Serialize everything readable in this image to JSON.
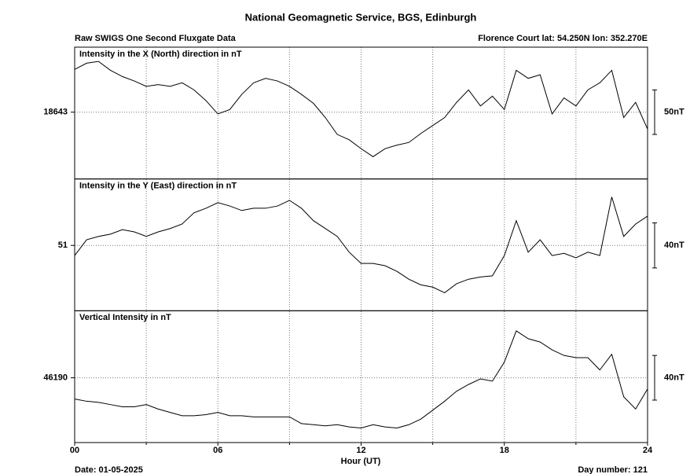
{
  "chart_data": {
    "type": "line",
    "title": "National Geomagnetic Service, BGS, Edinburgh",
    "subtitle": "Raw SWIGS One Second Fluxgate Data",
    "station": "Florence Court  lat: 54.250N lon: 352.270E",
    "xlabel": "Hour (UT)",
    "date": "Date: 01-05-2025",
    "day_number": "Day number:  121",
    "xlim": [
      0,
      24
    ],
    "xticks": [
      {
        "value": 0,
        "label": "00"
      },
      {
        "value": 6,
        "label": "06"
      },
      {
        "value": 12,
        "label": "12"
      },
      {
        "value": 18,
        "label": "18"
      },
      {
        "value": 24,
        "label": "24"
      }
    ],
    "xminor_ticks": [
      3,
      9,
      15,
      21
    ],
    "grid": true,
    "x": [
      0,
      0.5,
      1,
      1.5,
      2,
      2.5,
      3,
      3.5,
      4,
      4.5,
      5,
      5.5,
      6,
      6.5,
      7,
      7.5,
      8,
      8.5,
      9,
      9.5,
      10,
      10.5,
      11,
      11.5,
      12,
      12.5,
      13,
      13.5,
      14,
      14.5,
      15,
      15.5,
      16,
      16.5,
      17,
      17.5,
      18,
      18.5,
      19,
      19.5,
      20,
      20.5,
      21,
      21.5,
      22,
      22.5,
      23,
      23.5,
      24
    ],
    "panels": [
      {
        "label": "Intensity in the X (North) direction in nT",
        "ylim": [
          18568,
          18716
        ],
        "yticks": [
          18643
        ],
        "scale": {
          "value": 50,
          "label": "50nT"
        },
        "series": [
          {
            "color": "#000000",
            "values": [
              18691,
              18698,
              18700,
              18690,
              18683,
              18678,
              18672,
              18674,
              18672,
              18676,
              18668,
              18656,
              18641,
              18646,
              18663,
              18676,
              18681,
              18678,
              18672,
              18663,
              18653,
              18637,
              18618,
              18612,
              18602,
              18593,
              18602,
              18606,
              18609,
              18619,
              18628,
              18637,
              18654,
              18668,
              18650,
              18661,
              18646,
              18690,
              18681,
              18685,
              18641,
              18659,
              18650,
              18668,
              18676,
              18690,
              18637,
              18654,
              18624
            ]
          }
        ]
      },
      {
        "label": "Intensity in the Y (East) direction in nT",
        "ylim": [
          -7,
          110
        ],
        "yticks": [
          51
        ],
        "scale": {
          "value": 40,
          "label": "40nT"
        },
        "series": [
          {
            "color": "#000000",
            "values": [
              42,
              56,
              59,
              61,
              65,
              63,
              59,
              63,
              66,
              70,
              80,
              84,
              89,
              86,
              82,
              84,
              84,
              86,
              91,
              84,
              73,
              66,
              59,
              45,
              35,
              35,
              33,
              28,
              21,
              16,
              14,
              9,
              17,
              21,
              23,
              24,
              42,
              73,
              45,
              56,
              42,
              44,
              40,
              45,
              42,
              94,
              59,
              70,
              77
            ]
          }
        ]
      },
      {
        "label": "Vertical Intensity in nT",
        "ylim": [
          46132,
          46250
        ],
        "yticks": [
          46190
        ],
        "scale": {
          "value": 40,
          "label": "40nT"
        },
        "series": [
          {
            "color": "#000000",
            "values": [
              46171,
              46169,
              46168,
              46166,
              46164,
              46164,
              46166,
              46162,
              46159,
              46156,
              46156,
              46157,
              46159,
              46156,
              46156,
              46155,
              46155,
              46155,
              46155,
              46149,
              46148,
              46147,
              46148,
              46146,
              46145,
              46148,
              46146,
              46145,
              46148,
              46153,
              46161,
              46169,
              46178,
              46184,
              46189,
              46187,
              46204,
              46232,
              46225,
              46222,
              46215,
              46210,
              46208,
              46208,
              46197,
              46211,
              46173,
              46162,
              46180
            ]
          }
        ]
      }
    ]
  }
}
